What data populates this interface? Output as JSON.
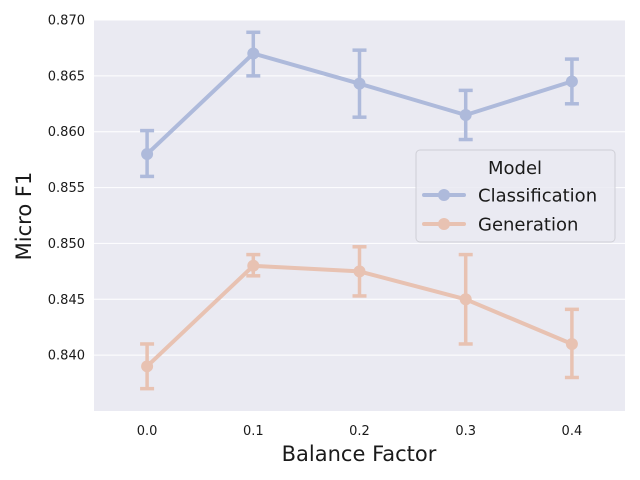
{
  "chart_data": {
    "type": "line",
    "xlabel": "Balance Factor",
    "ylabel": "Micro F1",
    "x": [
      0.0,
      0.1,
      0.2,
      0.3,
      0.4
    ],
    "x_tick_labels": [
      "0.0",
      "0.1",
      "0.2",
      "0.3",
      "0.4"
    ],
    "xlim": [
      -0.05,
      0.45
    ],
    "ylim": [
      0.835,
      0.87
    ],
    "y_ticks": [
      0.84,
      0.845,
      0.85,
      0.855,
      0.86,
      0.865,
      0.87
    ],
    "y_tick_labels": [
      "0.840",
      "0.845",
      "0.850",
      "0.855",
      "0.860",
      "0.865",
      "0.870"
    ],
    "grid": true,
    "legend": {
      "title": "Model",
      "placement": "center-right"
    },
    "series": [
      {
        "name": "Classification",
        "color": "#aebadb",
        "values": [
          0.858,
          0.867,
          0.8643,
          0.8615,
          0.8645
        ],
        "err_low": [
          0.856,
          0.865,
          0.8613,
          0.8593,
          0.8625
        ],
        "err_high": [
          0.8601,
          0.8689,
          0.8673,
          0.8637,
          0.8665
        ]
      },
      {
        "name": "Generation",
        "color": "#e8c2b2",
        "values": [
          0.839,
          0.848,
          0.8475,
          0.845,
          0.841
        ],
        "err_low": [
          0.837,
          0.8471,
          0.8453,
          0.841,
          0.838
        ],
        "err_high": [
          0.841,
          0.849,
          0.8497,
          0.849,
          0.8441
        ]
      }
    ]
  }
}
